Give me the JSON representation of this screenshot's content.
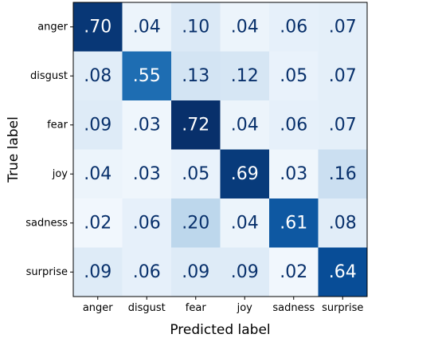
{
  "chart_data": {
    "type": "heatmap",
    "title": "",
    "xlabel": "Predicted label",
    "ylabel": "True label",
    "x_categories": [
      "anger",
      "disgust",
      "fear",
      "joy",
      "sadness",
      "surprise"
    ],
    "y_categories": [
      "anger",
      "disgust",
      "fear",
      "joy",
      "sadness",
      "surprise"
    ],
    "values": [
      [
        0.7,
        0.04,
        0.1,
        0.04,
        0.06,
        0.07
      ],
      [
        0.08,
        0.55,
        0.13,
        0.12,
        0.05,
        0.07
      ],
      [
        0.09,
        0.03,
        0.72,
        0.04,
        0.06,
        0.07
      ],
      [
        0.04,
        0.03,
        0.05,
        0.69,
        0.03,
        0.16
      ],
      [
        0.02,
        0.06,
        0.2,
        0.04,
        0.61,
        0.08
      ],
      [
        0.09,
        0.06,
        0.09,
        0.09,
        0.02,
        0.64
      ]
    ],
    "cell_labels": [
      [
        ".70",
        ".04",
        ".10",
        ".04",
        ".06",
        ".07"
      ],
      [
        ".08",
        ".55",
        ".13",
        ".12",
        ".05",
        ".07"
      ],
      [
        ".09",
        ".03",
        ".72",
        ".04",
        ".06",
        ".07"
      ],
      [
        ".04",
        ".03",
        ".05",
        ".69",
        ".03",
        ".16"
      ],
      [
        ".02",
        ".06",
        ".20",
        ".04",
        ".61",
        ".08"
      ],
      [
        ".09",
        ".06",
        ".09",
        ".09",
        ".02",
        ".64"
      ]
    ],
    "colormap": "Blues",
    "value_range": [
      0,
      0.72
    ],
    "grid": false,
    "colors": {
      "low": "#f7fbff",
      "high": "#08306b",
      "dark_text": "#08306b",
      "light_text": "#ffffff"
    }
  }
}
